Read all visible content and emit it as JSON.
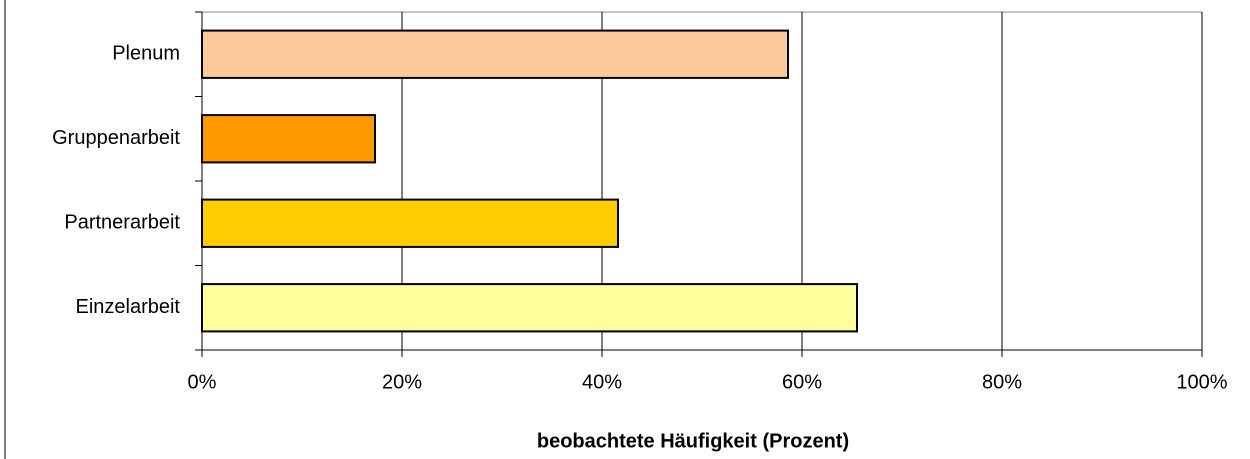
{
  "chart_data": {
    "type": "barh",
    "xlabel": "beobachtete Häufigkeit (Prozent)",
    "categories": [
      "Plenum",
      "Gruppenarbeit",
      "Partnerarbeit",
      "Einzelarbeit"
    ],
    "values": [
      58.6,
      17.3,
      41.6,
      65.5
    ],
    "colors": [
      "#fdc89a",
      "#ff9900",
      "#ffcc00",
      "#ffff99"
    ],
    "xlim": [
      0,
      100
    ],
    "xticks": [
      {
        "value": 0,
        "label": "0%"
      },
      {
        "value": 20,
        "label": "20%"
      },
      {
        "value": 40,
        "label": "40%"
      },
      {
        "value": 60,
        "label": "60%"
      },
      {
        "value": 80,
        "label": "80%"
      },
      {
        "value": 100,
        "label": "100%"
      }
    ],
    "grid": true
  }
}
